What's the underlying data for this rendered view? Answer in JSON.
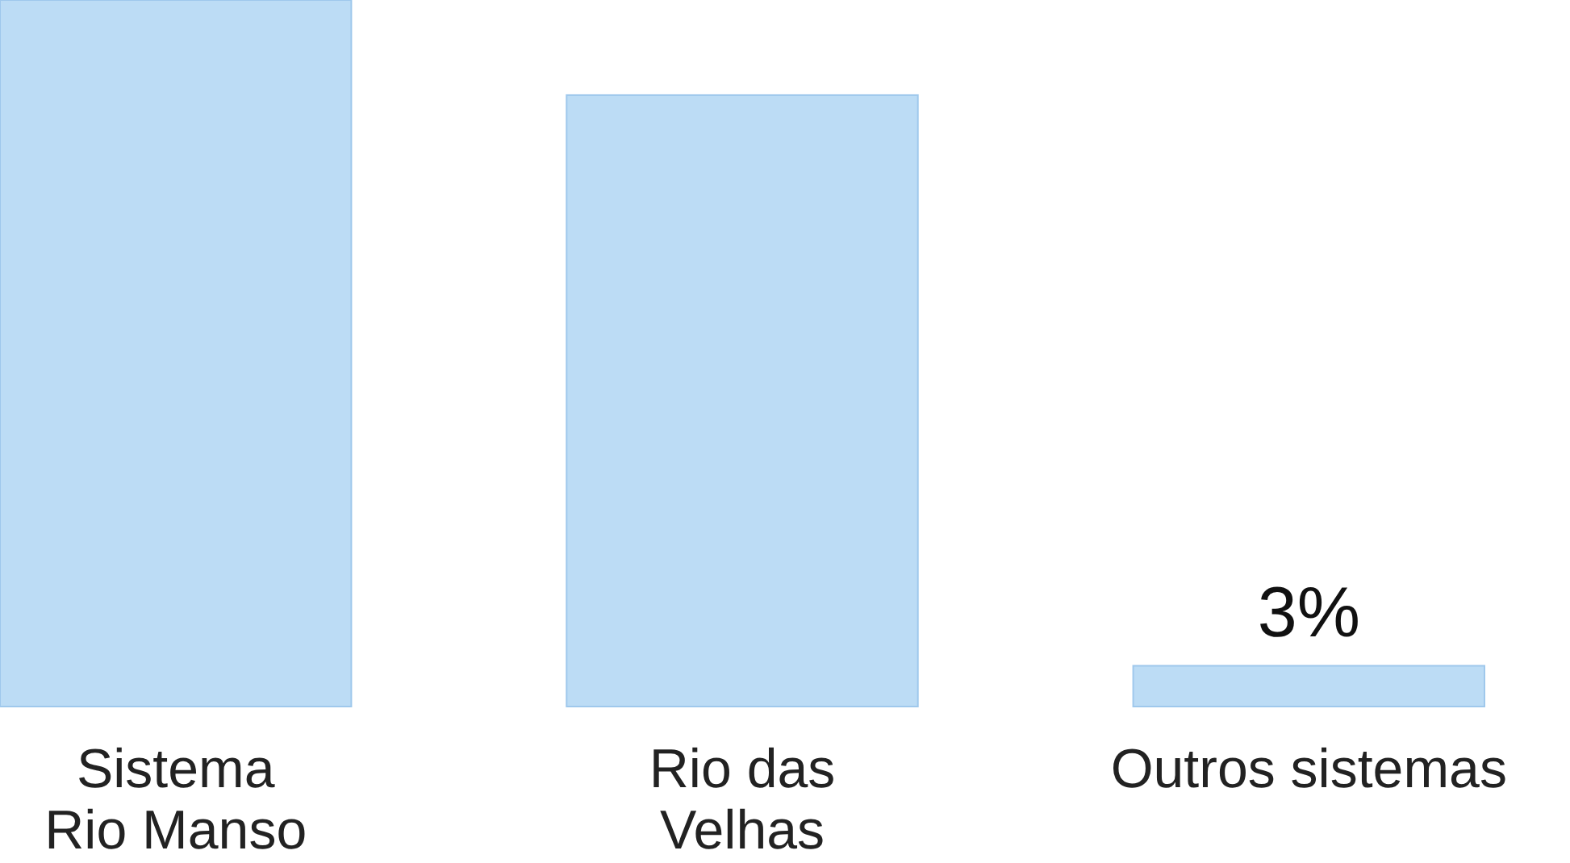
{
  "chart_data": {
    "type": "bar",
    "categories": [
      "Sistema\nRio Manso",
      "Rio das\nVelhas",
      "Outros sistemas"
    ],
    "values": [
      52,
      45,
      3
    ],
    "value_labels": [
      null,
      null,
      "3%"
    ],
    "color": "#bcdcf5"
  }
}
